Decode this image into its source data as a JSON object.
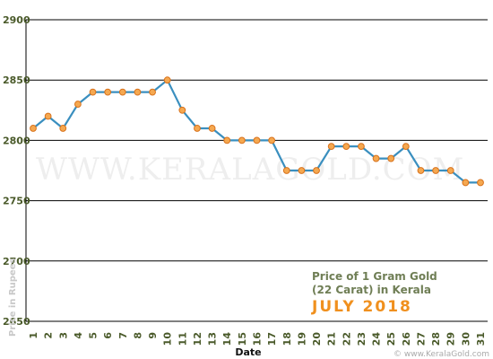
{
  "chart_data": {
    "type": "line",
    "xlabel": "Date",
    "ylabel": "Price in Rupees",
    "ylim": [
      2650,
      2900
    ],
    "yticks": [
      2650,
      2700,
      2750,
      2800,
      2850,
      2900
    ],
    "x": [
      1,
      2,
      3,
      4,
      5,
      6,
      7,
      8,
      9,
      10,
      11,
      12,
      13,
      14,
      15,
      16,
      17,
      18,
      19,
      20,
      21,
      22,
      23,
      24,
      25,
      26,
      27,
      28,
      29,
      30,
      31
    ],
    "series": [
      {
        "values": [
          2810,
          2820,
          2810,
          2830,
          2840,
          2840,
          2840,
          2840,
          2840,
          2850,
          2825,
          2810,
          2810,
          2800,
          2800,
          2800,
          2800,
          2775,
          2775,
          2775,
          2795,
          2795,
          2795,
          2785,
          2785,
          2795,
          2775,
          2775,
          2775,
          2765,
          2765
        ]
      }
    ],
    "grid": "horizontal",
    "caption_line1": "Price of 1 Gram Gold",
    "caption_line2": "(22 Carat) in Kerala",
    "caption_month": "JULY 2018",
    "watermark": "WWW.KERALAGOLD.COM",
    "credit": "© www.KeralaGold.com",
    "colors": {
      "line": "#3a8fbf",
      "marker_fill": "#f5a850",
      "marker_stroke": "#d8721c",
      "grid": "#000000",
      "tick_text": "#4a5a2a",
      "caption": "#6f7e55",
      "month": "#f0901e"
    }
  }
}
